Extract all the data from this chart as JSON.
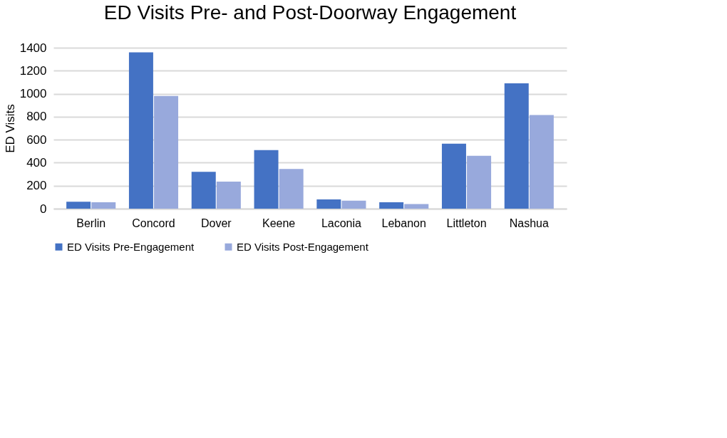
{
  "chart_data": {
    "type": "bar",
    "title": "ED Visits Pre- and Post-Doorway Engagement",
    "ylabel": "ED Visits",
    "categories": [
      "Berlin",
      "Concord",
      "Dover",
      "Keene",
      "Laconia",
      "Lebanon",
      "Littleton",
      "Nashua"
    ],
    "series": [
      {
        "name": "ED Visits Pre-Engagement",
        "color": "#4472c4",
        "values": [
          60,
          1360,
          320,
          510,
          80,
          55,
          565,
          1090
        ]
      },
      {
        "name": "ED Visits Post-Engagement",
        "color": "#98a9dc",
        "values": [
          55,
          980,
          235,
          345,
          70,
          40,
          460,
          815
        ]
      }
    ],
    "ylim": [
      0,
      1400
    ],
    "yticks": [
      0,
      200,
      400,
      600,
      800,
      1000,
      1200,
      1400
    ],
    "grid": "y",
    "legend": "bottom"
  }
}
